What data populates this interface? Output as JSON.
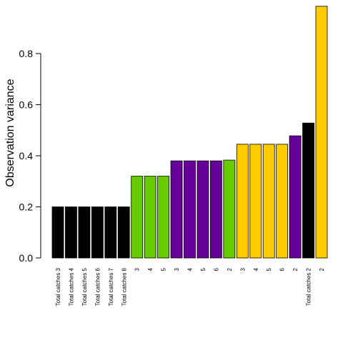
{
  "chart_data": {
    "type": "bar",
    "title": "",
    "xlabel": "",
    "ylabel": "Observation variance",
    "ylim": [
      0,
      0.99
    ],
    "yticks": [
      "0.0",
      "0.2",
      "0.4",
      "0.6",
      "0.8"
    ],
    "ytick_values": [
      0.0,
      0.2,
      0.4,
      0.6,
      0.8
    ],
    "grid": false,
    "categories": [
      "Total catches 3",
      "Total catches 4",
      "Total catches 5",
      "Total catches 6",
      "Total catches 7",
      "Total catches 8",
      "3",
      "4",
      "5",
      "3",
      "4",
      "5",
      "6",
      "2",
      "3",
      "4",
      "5",
      "6",
      "2",
      "Total catches 2",
      "2"
    ],
    "values": [
      0.2,
      0.2,
      0.2,
      0.2,
      0.2,
      0.2,
      0.32,
      0.32,
      0.32,
      0.38,
      0.38,
      0.38,
      0.38,
      0.383,
      0.445,
      0.445,
      0.445,
      0.445,
      0.478,
      0.528,
      0.985
    ],
    "colors": [
      "#000000",
      "#000000",
      "#000000",
      "#000000",
      "#000000",
      "#000000",
      "#66cc00",
      "#66cc00",
      "#66cc00",
      "#660099",
      "#660099",
      "#660099",
      "#660099",
      "#66cc00",
      "#ffcc00",
      "#ffcc00",
      "#ffcc00",
      "#ffcc00",
      "#660099",
      "#000000",
      "#ffcc00"
    ]
  }
}
